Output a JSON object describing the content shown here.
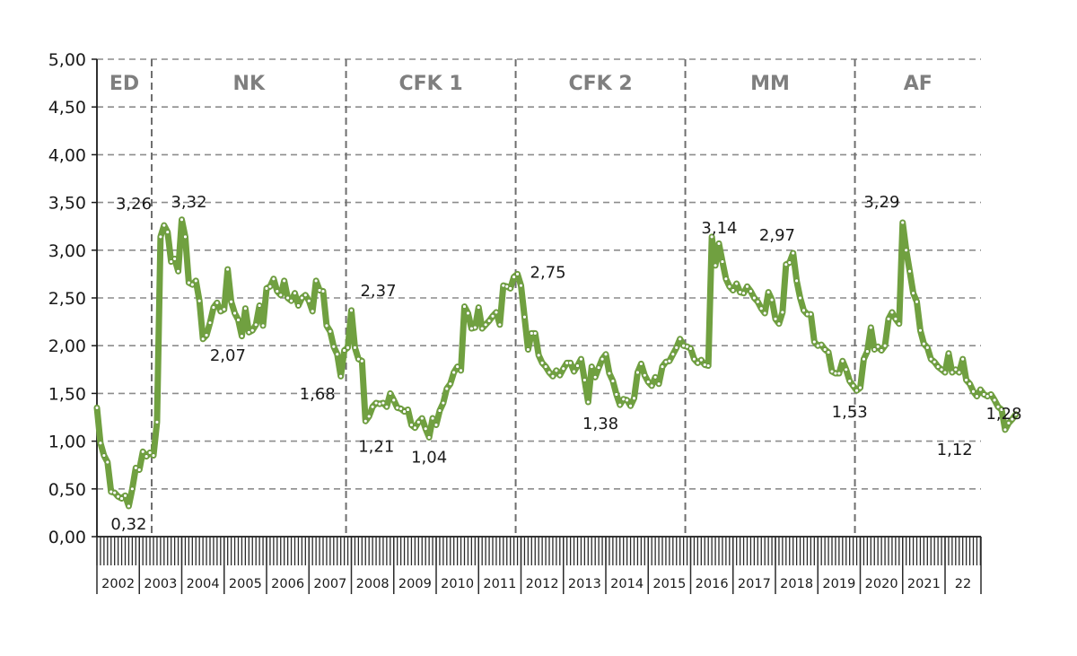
{
  "chart_data": {
    "type": "line",
    "title": "",
    "xlabel": "",
    "ylabel": "",
    "ylim": [
      0,
      5
    ],
    "yticks": [
      "0,00",
      "0,50",
      "1,00",
      "1,50",
      "2,00",
      "2,50",
      "3,00",
      "3,50",
      "4,00",
      "4,50",
      "5,00"
    ],
    "grid": true,
    "legend": null,
    "frequency": "monthly",
    "x_start": "2002-01",
    "year_labels": [
      "2002",
      "2003",
      "2004",
      "2005",
      "2006",
      "2007",
      "2008",
      "2009",
      "2010",
      "2011",
      "2012",
      "2013",
      "2014",
      "2015",
      "2016",
      "2017",
      "2018",
      "2019",
      "2020",
      "2021",
      "22"
    ],
    "periods": [
      {
        "label": "ED",
        "start": "2002-01",
        "end": "2003-05"
      },
      {
        "label": "NK",
        "start": "2003-05",
        "end": "2007-12"
      },
      {
        "label": "CFK 1",
        "start": "2007-12",
        "end": "2011-12"
      },
      {
        "label": "CFK 2",
        "start": "2011-12",
        "end": "2015-12"
      },
      {
        "label": "MM",
        "start": "2015-12",
        "end": "2019-12"
      },
      {
        "label": "AF",
        "start": "2019-12",
        "end": "2022-10"
      }
    ],
    "annotations": [
      {
        "text": "3,26",
        "month_index": 16,
        "value": 3.26
      },
      {
        "text": "3,32",
        "month_index": 24,
        "value": 3.32
      },
      {
        "text": "0,32",
        "month_index": 9,
        "value": 0.32
      },
      {
        "text": "2,07",
        "month_index": 34,
        "value": 2.07
      },
      {
        "text": "1,68",
        "month_index": 69,
        "value": 1.68
      },
      {
        "text": "2,37",
        "month_index": 72,
        "value": 2.37
      },
      {
        "text": "1,21",
        "month_index": 76,
        "value": 1.21
      },
      {
        "text": "1,04",
        "month_index": 94,
        "value": 1.04
      },
      {
        "text": "2,75",
        "month_index": 119,
        "value": 2.75
      },
      {
        "text": "1,38",
        "month_index": 143,
        "value": 1.38
      },
      {
        "text": "3,14",
        "month_index": 169,
        "value": 3.14
      },
      {
        "text": "2,97",
        "month_index": 193,
        "value": 2.97
      },
      {
        "text": "1,53",
        "month_index": 213,
        "value": 1.53
      },
      {
        "text": "3,29",
        "month_index": 218,
        "value": 3.29
      },
      {
        "text": "1,12",
        "month_index": 245,
        "value": 1.12
      },
      {
        "text": "1,28",
        "month_index": 248,
        "value": 1.28
      }
    ],
    "series": [
      {
        "name": "series",
        "color": "#70a040",
        "values": [
          1.35,
          0.98,
          0.85,
          0.78,
          0.47,
          0.46,
          0.42,
          0.4,
          0.43,
          0.32,
          0.5,
          0.72,
          0.7,
          0.89,
          0.84,
          0.88,
          0.85,
          1.2,
          3.14,
          3.26,
          3.19,
          2.88,
          2.91,
          2.78,
          3.32,
          3.14,
          2.66,
          2.64,
          2.68,
          2.47,
          2.07,
          2.11,
          2.24,
          2.4,
          2.45,
          2.36,
          2.38,
          2.8,
          2.46,
          2.34,
          2.27,
          2.1,
          2.39,
          2.14,
          2.16,
          2.22,
          2.42,
          2.21,
          2.6,
          2.62,
          2.7,
          2.57,
          2.53,
          2.68,
          2.5,
          2.47,
          2.55,
          2.42,
          2.5,
          2.53,
          2.47,
          2.36,
          2.68,
          2.58,
          2.57,
          2.21,
          2.15,
          1.99,
          1.91,
          1.68,
          1.95,
          1.98,
          2.37,
          1.98,
          1.86,
          1.84,
          1.21,
          1.26,
          1.36,
          1.4,
          1.39,
          1.4,
          1.36,
          1.5,
          1.43,
          1.35,
          1.34,
          1.31,
          1.33,
          1.17,
          1.14,
          1.2,
          1.24,
          1.13,
          1.04,
          1.24,
          1.17,
          1.32,
          1.4,
          1.55,
          1.6,
          1.72,
          1.78,
          1.74,
          2.41,
          2.34,
          2.18,
          2.19,
          2.4,
          2.18,
          2.22,
          2.26,
          2.31,
          2.35,
          2.22,
          2.63,
          2.62,
          2.6,
          2.72,
          2.75,
          2.63,
          2.3,
          1.96,
          2.13,
          2.13,
          1.9,
          1.82,
          1.78,
          1.72,
          1.68,
          1.74,
          1.69,
          1.76,
          1.82,
          1.82,
          1.73,
          1.79,
          1.86,
          1.64,
          1.41,
          1.78,
          1.67,
          1.77,
          1.86,
          1.91,
          1.71,
          1.63,
          1.49,
          1.38,
          1.44,
          1.43,
          1.37,
          1.45,
          1.72,
          1.81,
          1.69,
          1.62,
          1.58,
          1.67,
          1.6,
          1.78,
          1.83,
          1.84,
          1.91,
          1.98,
          2.07,
          2.0,
          1.99,
          1.97,
          1.86,
          1.82,
          1.85,
          1.8,
          1.79,
          3.14,
          2.84,
          3.07,
          2.88,
          2.7,
          2.62,
          2.58,
          2.65,
          2.56,
          2.55,
          2.62,
          2.57,
          2.5,
          2.46,
          2.39,
          2.34,
          2.56,
          2.48,
          2.28,
          2.23,
          2.35,
          2.85,
          2.87,
          2.97,
          2.68,
          2.5,
          2.37,
          2.33,
          2.33,
          2.04,
          2.0,
          2.01,
          1.96,
          1.93,
          1.73,
          1.71,
          1.71,
          1.84,
          1.75,
          1.63,
          1.58,
          1.53,
          1.56,
          1.86,
          1.94,
          2.19,
          1.96,
          1.99,
          1.95,
          2.0,
          2.28,
          2.35,
          2.28,
          2.23,
          3.29,
          3.0,
          2.78,
          2.55,
          2.46,
          2.16,
          2.02,
          1.98,
          1.86,
          1.83,
          1.78,
          1.75,
          1.72,
          1.92,
          1.72,
          1.75,
          1.72,
          1.86,
          1.64,
          1.6,
          1.52,
          1.47,
          1.54,
          1.49,
          1.47,
          1.49,
          1.43,
          1.36,
          1.33,
          1.12,
          1.19,
          1.23,
          1.28
        ]
      }
    ]
  }
}
